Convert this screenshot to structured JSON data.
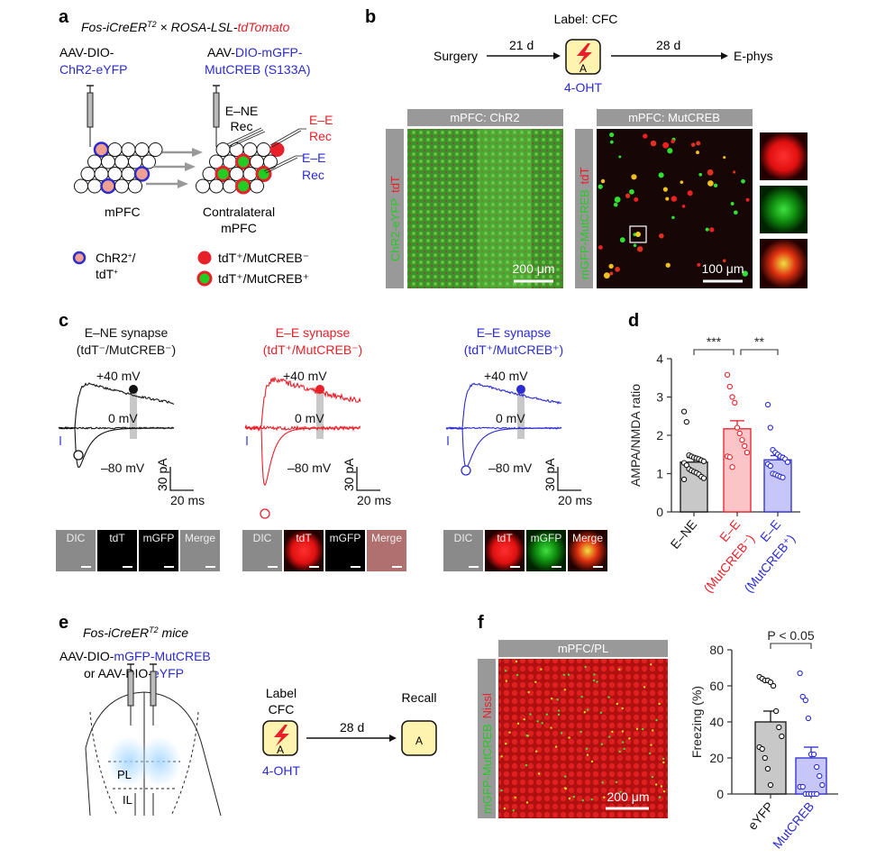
{
  "colors": {
    "red": "#e8202a",
    "blue": "#2b2bd0",
    "green": "#22b022",
    "gray": "#9a9a9a",
    "black": "#111111"
  },
  "panel_a": {
    "letter": "a",
    "title_part1": "Fos-iCreER",
    "title_sup": "T2",
    "title_part2": " × ROSA-LSL-",
    "title_part3": "tdTomato",
    "left_virus_line1": "AAV-DIO-",
    "left_virus_line2": "ChR2-eYFP",
    "right_virus_line1a": "AAV-",
    "right_virus_line1b": "DIO-mGFP-",
    "right_virus_line2": "MutCREB (S133A)",
    "rec_ene_1": "E–NE",
    "rec_ene_2": "Rec",
    "rec_ee_red_1": "E–E",
    "rec_ee_red_2": "Rec",
    "rec_ee_blue_1": "E–E",
    "rec_ee_blue_2": "Rec",
    "left_region": "mPFC",
    "right_region_1": "Contralateral",
    "right_region_2": "mPFC",
    "legend_chr2_1": "ChR2",
    "legend_chr2_sup": "+",
    "legend_chr2_2": "/",
    "legend_chr2_3": "tdT",
    "legend_chr2_sup2": "+",
    "legend_red": "tdT⁺/MutCREB⁻",
    "legend_green": "tdT⁺/MutCREB⁺"
  },
  "panel_b": {
    "letter": "b",
    "label_cfc": "Label: CFC",
    "surgery": "Surgery",
    "interval1": "21 d",
    "box_letter": "A",
    "drug": "4-OHT",
    "interval2": "28 d",
    "ephys": "E-phys",
    "img1_header": "mPFC: ChR2",
    "img1_side_green": "ChR2-eYFP",
    "img1_side_red": "tdT",
    "img1_scale": "200 μm",
    "img2_header": "mPFC: MutCREB",
    "img2_side_green": "mGFP-MutCREB",
    "img2_side_red": "tdT",
    "img2_scale": "100 μm"
  },
  "panel_c": {
    "letter": "c",
    "columns": [
      {
        "title": "E–NE synapse",
        "subtitle": "(tdT⁻/MutCREB⁻)",
        "color": "#111111",
        "v40": "+40 mV",
        "v0": "0 mV",
        "v80": "–80 mV",
        "scale_y": "30 pA",
        "scale_x": "20 ms",
        "thumbs": [
          "DIC",
          "tdT",
          "mGFP",
          "Merge"
        ]
      },
      {
        "title": "E–E synapse",
        "subtitle": "(tdT⁺/MutCREB⁻)",
        "color": "#e8202a",
        "v40": "+40 mV",
        "v0": "0 mV",
        "v80": "–80 mV",
        "scale_y": "30 pA",
        "scale_x": "20 ms",
        "thumbs": [
          "DIC",
          "tdT",
          "mGFP",
          "Merge"
        ]
      },
      {
        "title": "E–E synapse",
        "subtitle": "(tdT⁺/MutCREB⁺)",
        "color": "#2b2bd0",
        "v40": "+40 mV",
        "v0": "0 mV",
        "v80": "–80 mV",
        "scale_y": "30 pA",
        "scale_x": "20 ms",
        "thumbs": [
          "DIC",
          "tdT",
          "mGFP",
          "Merge"
        ]
      }
    ]
  },
  "panel_d": {
    "letter": "d"
  },
  "panel_e": {
    "letter": "e",
    "mice_1": "Fos-iCreER",
    "mice_sup": "T2",
    "mice_2": " mice",
    "virus1a": "AAV-DIO-",
    "virus1b": "mGFP-MutCREB",
    "virus2a": "or AAV-DIO-",
    "virus2b": "eYFP",
    "pl": "PL",
    "il": "IL",
    "label_1": "Label",
    "label_2": "CFC",
    "box_letter": "A",
    "drug": "4-OHT",
    "interval": "28 d",
    "recall": "Recall",
    "recall_box": "A"
  },
  "panel_f": {
    "letter": "f",
    "img_header": "mPFC/PL",
    "img_side_green": "mGFP-MutCREB",
    "img_side_red": "Nissl",
    "img_scale": "200 μm"
  },
  "chart_data": [
    {
      "type": "bar",
      "panel": "d",
      "ylabel": "AMPA/NMDA ratio",
      "ylim": [
        0,
        4
      ],
      "yticks": [
        "0",
        "1",
        "2",
        "3",
        "4"
      ],
      "categories": [
        "E–NE",
        "E–E (MutCREB⁻)",
        "E–E (MutCREB⁺)"
      ],
      "category_lines": [
        [
          "E–NE"
        ],
        [
          "E–E",
          "(MutCREB⁻)"
        ],
        [
          "E–E",
          "(MutCREB⁺)"
        ]
      ],
      "category_colors": [
        "#111111",
        "#e8202a",
        "#2b2bd0"
      ],
      "bar_fills": [
        "#c8c8c8",
        "#fbc4c6",
        "#c6c6f8"
      ],
      "values": [
        1.3,
        2.17,
        1.36
      ],
      "sem": [
        0.12,
        0.21,
        0.11
      ],
      "points": [
        [
          2.62,
          2.35,
          1.48,
          1.45,
          1.42,
          1.4,
          1.38,
          1.35,
          1.32,
          1.28,
          1.22,
          1.12,
          1.08,
          1.05,
          1.02,
          0.98,
          0.92,
          0.88,
          0.85
        ],
        [
          3.58,
          3.27,
          3.0,
          2.85,
          2.2,
          2.05,
          1.88,
          1.72,
          1.55,
          1.45,
          1.43,
          1.17
        ],
        [
          2.8,
          2.2,
          1.62,
          1.55,
          1.5,
          1.45,
          1.42,
          1.38,
          1.3,
          1.25,
          1.2,
          1.0,
          0.98,
          0.95,
          0.92,
          0.9
        ]
      ],
      "significance": [
        {
          "between": [
            0,
            1
          ],
          "label": "***"
        },
        {
          "between": [
            1,
            2
          ],
          "label": "**"
        }
      ]
    },
    {
      "type": "bar",
      "panel": "f",
      "ylabel": "Freezing (%)",
      "ylim": [
        0,
        80
      ],
      "yticks": [
        "0",
        "20",
        "40",
        "60",
        "80"
      ],
      "categories": [
        "eYFP",
        "MutCREB"
      ],
      "category_colors": [
        "#111111",
        "#2b2bd0"
      ],
      "bar_fills": [
        "#c8c8c8",
        "#c6c6f8"
      ],
      "values": [
        40,
        20
      ],
      "sem": [
        6,
        6
      ],
      "points": [
        [
          65,
          64,
          63,
          63,
          62,
          60,
          46,
          37,
          32,
          26,
          25,
          20,
          14,
          5
        ],
        [
          67,
          54,
          52,
          42,
          22,
          22,
          15,
          10,
          5,
          4,
          4,
          0,
          0,
          0,
          0,
          0
        ]
      ],
      "significance": [
        {
          "between": [
            0,
            1
          ],
          "label": "P < 0.05"
        }
      ]
    }
  ]
}
